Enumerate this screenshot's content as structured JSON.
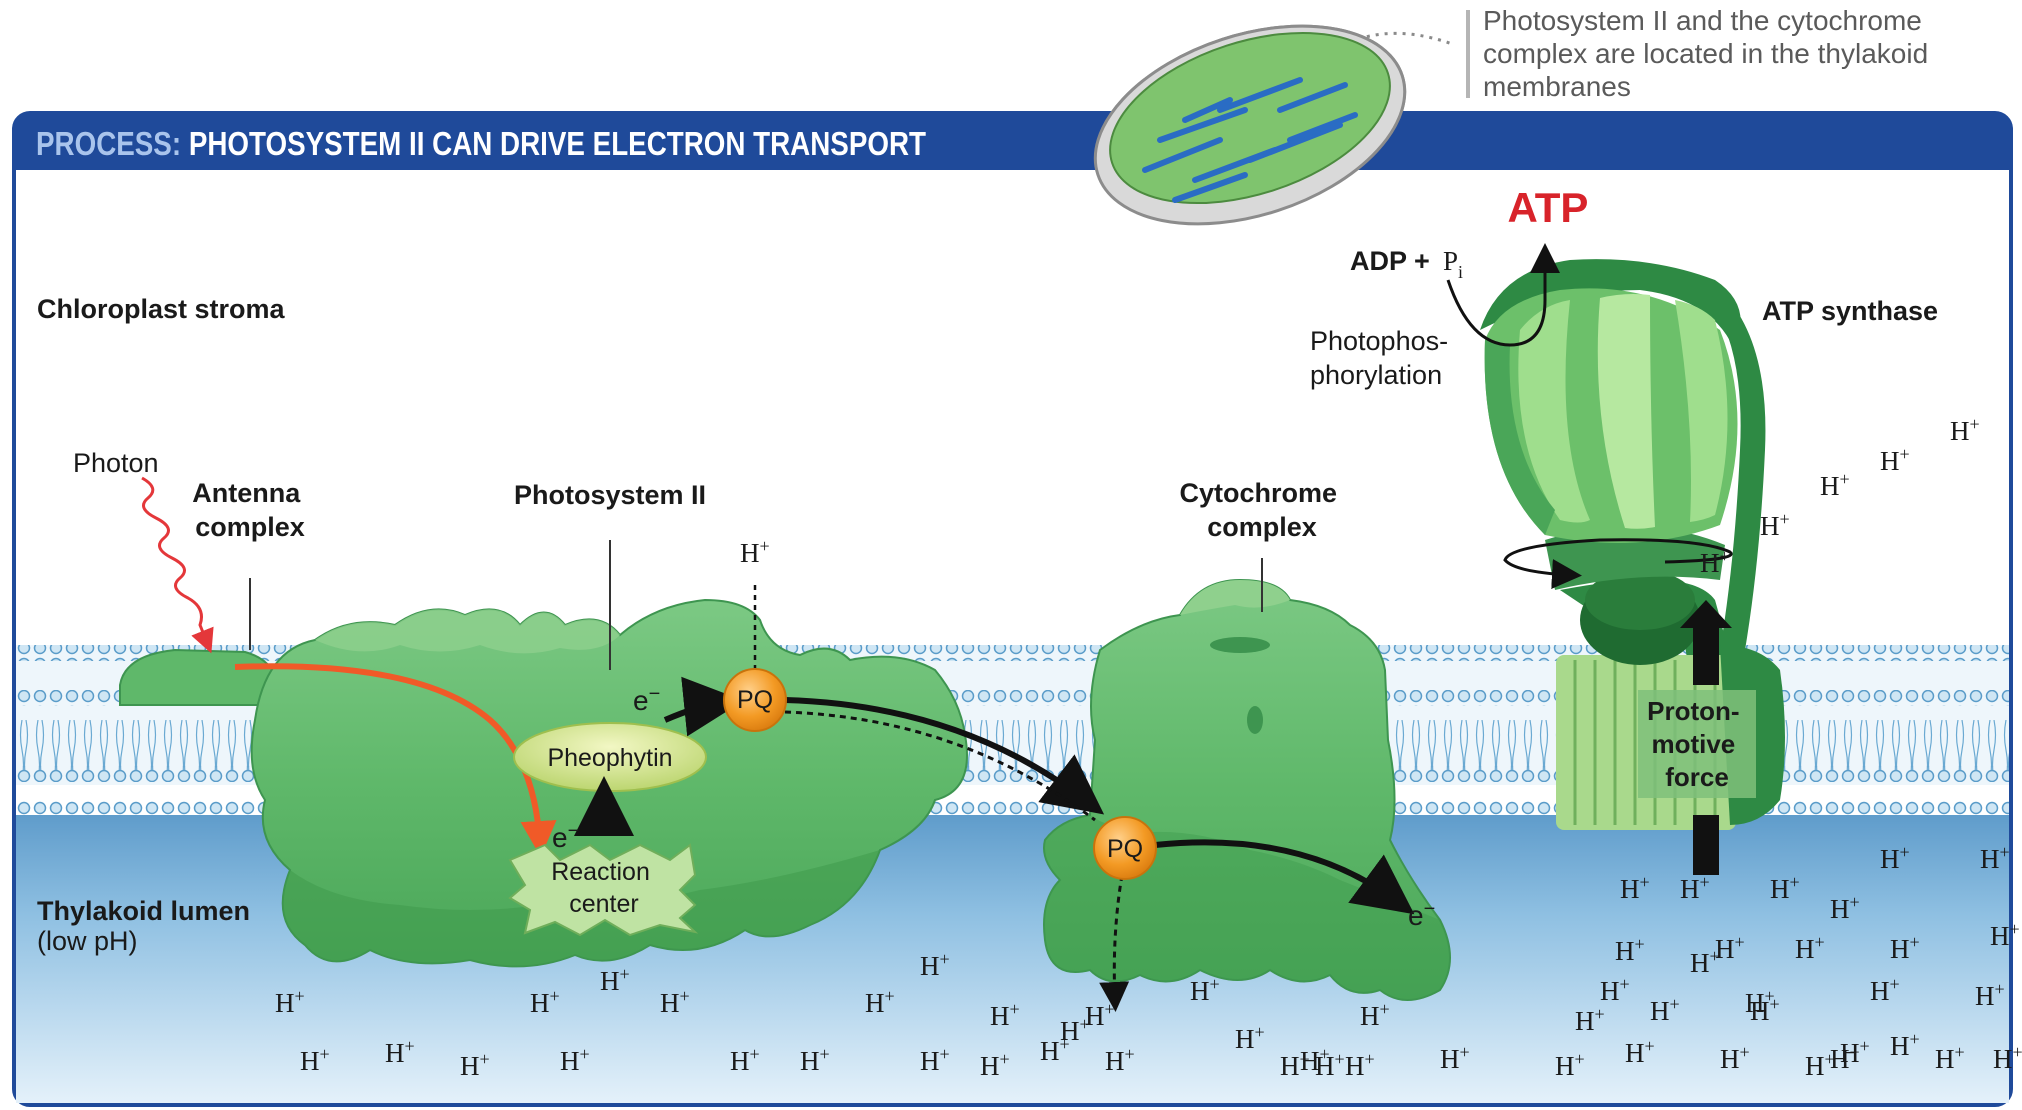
{
  "header": {
    "prefix": "PROCESS:",
    "title": "PHOTOSYSTEM II CAN DRIVE ELECTRON TRANSPORT"
  },
  "inset_note": {
    "lines": [
      "Photosystem II and the cytochrome",
      "complex are located in the thylakoid",
      "membranes"
    ]
  },
  "labels": {
    "stroma": "Chloroplast stroma",
    "lumen": "Thylakoid lumen",
    "lumen_note": "(low pH)",
    "photon": "Photon",
    "antenna": [
      "Antenna",
      "complex"
    ],
    "photosystem": "Photosystem II",
    "cytochrome": [
      "Cytochrome",
      "complex"
    ],
    "atp_synthase": "ATP synthase",
    "atp": "ATP",
    "adp": "ADP +",
    "pi": "P",
    "pi_sub": "i",
    "photophos": [
      "Photophos-",
      "phorylation"
    ],
    "pheophytin": "Pheophytin",
    "reaction_center": [
      "Reaction",
      "center"
    ],
    "pq": "PQ",
    "electron": "e",
    "electron_sup": "−",
    "proton_force": [
      "Proton-",
      "motive",
      "force"
    ],
    "hplus": "H",
    "hplus_sup": "+"
  },
  "colors": {
    "header_blue": "#1f4a9a",
    "header_prefix": "#a9c4ec",
    "protein_green": "#5fb86a",
    "protein_dark": "#2e8a44",
    "lumen_blue": "#7fb3d8",
    "pq_orange": "#f39a24",
    "photon_red": "#e4373a",
    "electron_path": "#f05a28",
    "atp_red": "#d8232a"
  }
}
